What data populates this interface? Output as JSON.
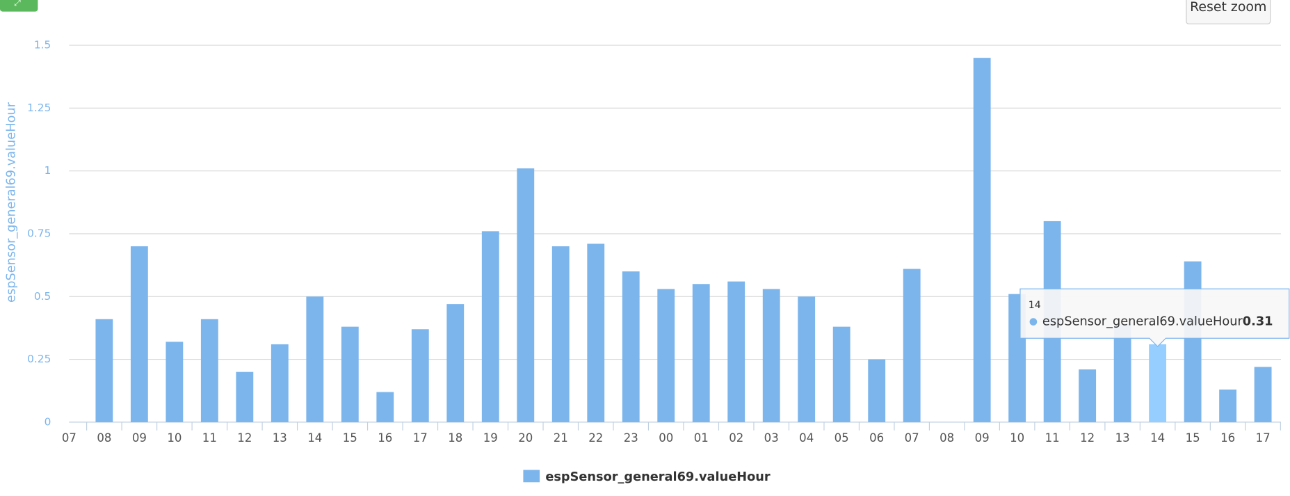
{
  "chart_data": {
    "type": "bar",
    "y_axis_title": "espSensor_general69.valueHour",
    "categories": [
      "07",
      "08",
      "09",
      "10",
      "11",
      "12",
      "13",
      "14",
      "15",
      "16",
      "17",
      "18",
      "19",
      "20",
      "21",
      "22",
      "23",
      "00",
      "01",
      "02",
      "03",
      "04",
      "05",
      "06",
      "07",
      "08",
      "09",
      "10",
      "11",
      "12",
      "13",
      "14",
      "15",
      "16",
      "17"
    ],
    "series": [
      {
        "name": "espSensor_general69.valueHour",
        "color": "#7cb5ec",
        "values": [
          null,
          0.41,
          0.7,
          0.32,
          0.41,
          0.2,
          0.31,
          0.5,
          0.38,
          0.12,
          0.37,
          0.47,
          0.76,
          1.01,
          0.7,
          0.71,
          0.6,
          0.53,
          0.55,
          0.56,
          0.53,
          0.5,
          0.38,
          0.25,
          0.61,
          null,
          1.45,
          0.51,
          0.8,
          0.21,
          0.39,
          0.31,
          0.64,
          0.13,
          0.22
        ]
      }
    ],
    "ylim": [
      0,
      1.5
    ],
    "yticks": [
      0,
      0.25,
      0.5,
      0.75,
      1,
      1.25,
      1.5
    ],
    "grid": true,
    "legend": "bottom"
  },
  "ui": {
    "reset_zoom": "Reset zoom"
  }
}
